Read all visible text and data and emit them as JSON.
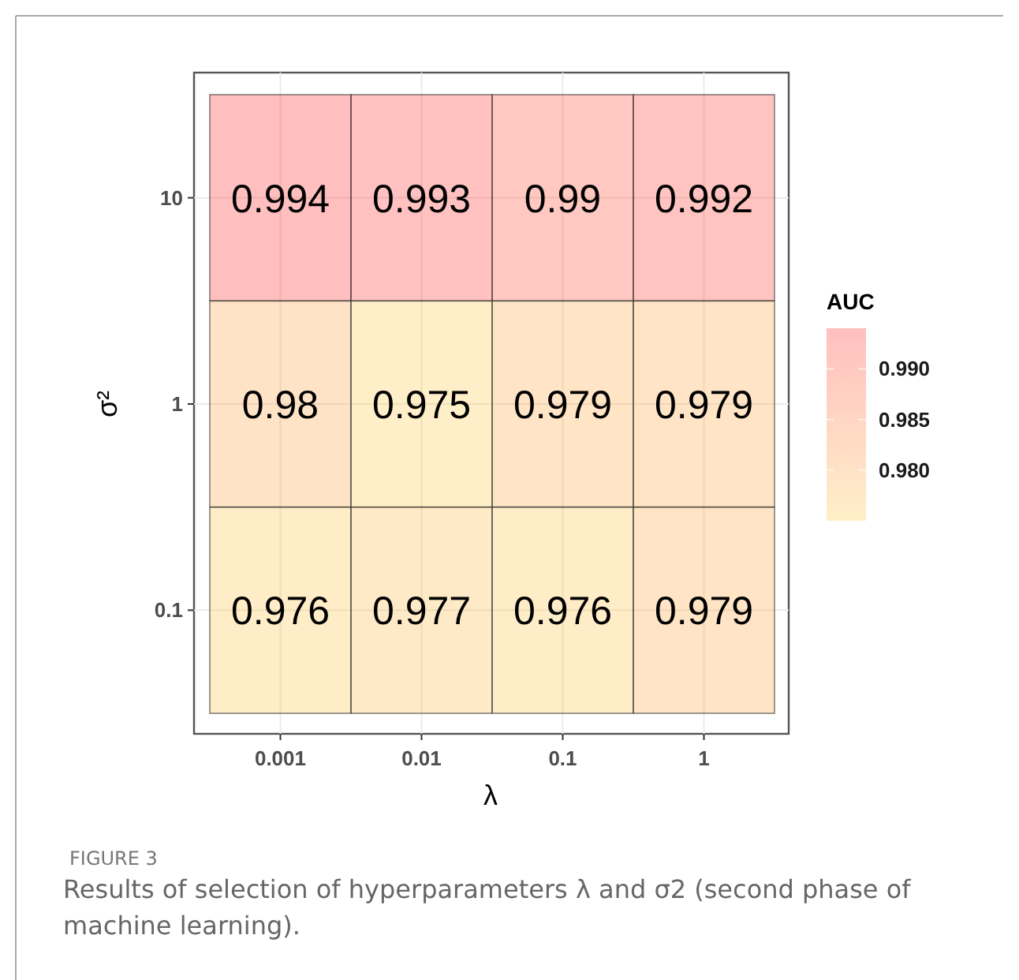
{
  "chart_data": {
    "type": "heatmap",
    "xlabel": "λ",
    "ylabel": "σ²",
    "clabel": "AUC",
    "categories": [
      "0.001",
      "0.01",
      "0.1",
      "1"
    ],
    "y_categories": [
      "10",
      "1",
      "0.1"
    ],
    "cells": [
      [
        0.994,
        0.993,
        0.99,
        0.992
      ],
      [
        0.98,
        0.975,
        0.979,
        0.979
      ],
      [
        0.976,
        0.977,
        0.976,
        0.979
      ]
    ],
    "data_labels": true,
    "grid": true,
    "clim": [
      0.975,
      0.994
    ],
    "cticks": [
      {
        "value": 0.98,
        "label": "0.980"
      },
      {
        "value": 0.985,
        "label": "0.985"
      },
      {
        "value": 0.99,
        "label": "0.990"
      }
    ],
    "annotations": [
      "FIGURE 3",
      "Results of selection of hyperparameters λ and σ2 (second phase of machine learning)."
    ]
  }
}
